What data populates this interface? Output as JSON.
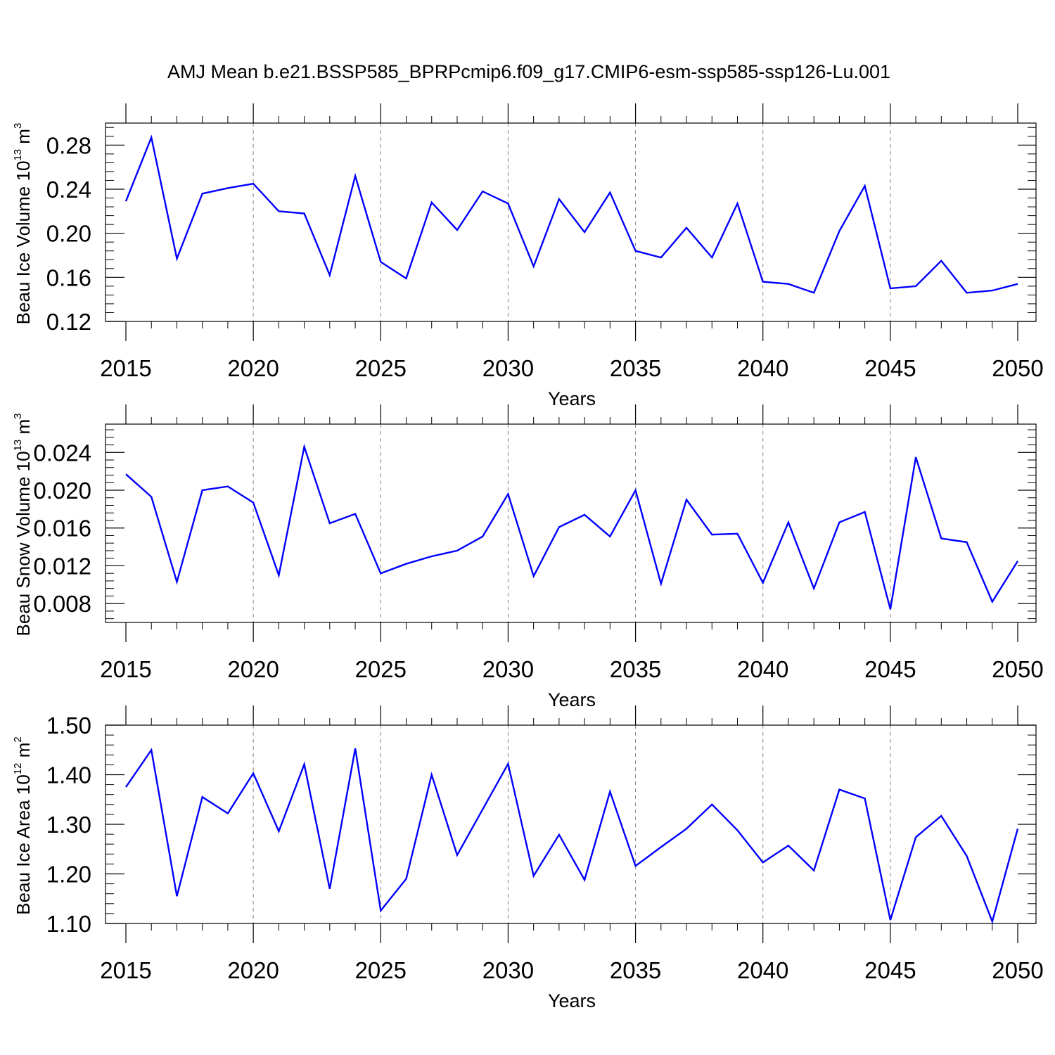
{
  "title": "AMJ Mean b.e21.BSSP585_BPRPcmip6.f09_g17.CMIP6-esm-ssp585-ssp126-Lu.001",
  "colors": {
    "series": "#0000ff",
    "axes": "#000000",
    "grid": "#808080"
  },
  "chart_data": [
    {
      "type": "line",
      "title": "AMJ Mean b.e21.BSSP585_BPRPcmip6.f09_g17.CMIP6-esm-ssp585-ssp126-Lu.001",
      "xlabel": "Years",
      "ylabel": {
        "text": "Beau Ice Volume 10",
        "exp": "13",
        "unit": " m",
        "unit_exp": "3"
      },
      "xlim": [
        2015,
        2050
      ],
      "ylim": [
        0.12,
        0.3
      ],
      "xticks": [
        "2015",
        "2020",
        "2025",
        "2030",
        "2035",
        "2040",
        "2045",
        "2050"
      ],
      "yticks": [
        "0.12",
        "0.16",
        "0.20",
        "0.24",
        "0.28"
      ],
      "grid": "vertical dashed at major x ticks",
      "x": [
        2015,
        2016,
        2017,
        2018,
        2019,
        2020,
        2021,
        2022,
        2023,
        2024,
        2025,
        2026,
        2027,
        2028,
        2029,
        2030,
        2031,
        2032,
        2033,
        2034,
        2035,
        2036,
        2037,
        2038,
        2039,
        2040,
        2041,
        2042,
        2043,
        2044,
        2045,
        2046,
        2047,
        2048,
        2049,
        2050
      ],
      "values": [
        0.229,
        0.287,
        0.177,
        0.236,
        0.241,
        0.245,
        0.22,
        0.218,
        0.162,
        0.252,
        0.174,
        0.159,
        0.228,
        0.203,
        0.238,
        0.227,
        0.17,
        0.231,
        0.201,
        0.237,
        0.184,
        0.178,
        0.205,
        0.178,
        0.227,
        0.156,
        0.154,
        0.146,
        0.202,
        0.243,
        0.15,
        0.152,
        0.175,
        0.146,
        0.148,
        0.154
      ]
    },
    {
      "type": "line",
      "xlabel": "Years",
      "ylabel": {
        "text": "Beau Snow Volume 10",
        "exp": "13",
        "unit": " m",
        "unit_exp": "3"
      },
      "xlim": [
        2015,
        2050
      ],
      "ylim": [
        0.006,
        0.027
      ],
      "xticks": [
        "2015",
        "2020",
        "2025",
        "2030",
        "2035",
        "2040",
        "2045",
        "2050"
      ],
      "yticks": [
        "0.008",
        "0.012",
        "0.016",
        "0.020",
        "0.024"
      ],
      "grid": "vertical dashed at major x ticks",
      "x": [
        2015,
        2016,
        2017,
        2018,
        2019,
        2020,
        2021,
        2022,
        2023,
        2024,
        2025,
        2026,
        2027,
        2028,
        2029,
        2030,
        2031,
        2032,
        2033,
        2034,
        2035,
        2036,
        2037,
        2038,
        2039,
        2040,
        2041,
        2042,
        2043,
        2044,
        2045,
        2046,
        2047,
        2048,
        2049,
        2050
      ],
      "values": [
        0.0217,
        0.0193,
        0.0103,
        0.02,
        0.0204,
        0.0187,
        0.011,
        0.0246,
        0.0165,
        0.0175,
        0.0112,
        0.0122,
        0.013,
        0.0136,
        0.0151,
        0.0196,
        0.0109,
        0.0161,
        0.0174,
        0.0151,
        0.02,
        0.0101,
        0.019,
        0.0153,
        0.0154,
        0.0102,
        0.0166,
        0.0096,
        0.0166,
        0.0177,
        0.0074,
        0.0235,
        0.0149,
        0.0145,
        0.0082,
        0.0125
      ]
    },
    {
      "type": "line",
      "xlabel": "Years",
      "ylabel": {
        "text": "Beau Ice Area 10",
        "exp": "12",
        "unit": " m",
        "unit_exp": "2"
      },
      "xlim": [
        2015,
        2050
      ],
      "ylim": [
        1.1,
        1.5
      ],
      "xticks": [
        "2015",
        "2020",
        "2025",
        "2030",
        "2035",
        "2040",
        "2045",
        "2050"
      ],
      "yticks": [
        "1.10",
        "1.20",
        "1.30",
        "1.40",
        "1.50"
      ],
      "grid": "vertical dashed at major x ticks",
      "x": [
        2015,
        2016,
        2017,
        2018,
        2019,
        2020,
        2021,
        2022,
        2023,
        2024,
        2025,
        2026,
        2027,
        2028,
        2029,
        2030,
        2031,
        2032,
        2033,
        2034,
        2035,
        2036,
        2037,
        2038,
        2039,
        2040,
        2041,
        2042,
        2043,
        2044,
        2045,
        2046,
        2047,
        2048,
        2049,
        2050
      ],
      "values": [
        1.375,
        1.45,
        1.155,
        1.355,
        1.322,
        1.403,
        1.286,
        1.421,
        1.17,
        1.453,
        1.126,
        1.19,
        1.4,
        1.238,
        1.33,
        1.422,
        1.196,
        1.279,
        1.188,
        1.366,
        1.216,
        1.254,
        1.291,
        1.34,
        1.288,
        1.223,
        1.257,
        1.207,
        1.37,
        1.352,
        1.107,
        1.274,
        1.317,
        1.236,
        1.104,
        1.291
      ]
    }
  ]
}
